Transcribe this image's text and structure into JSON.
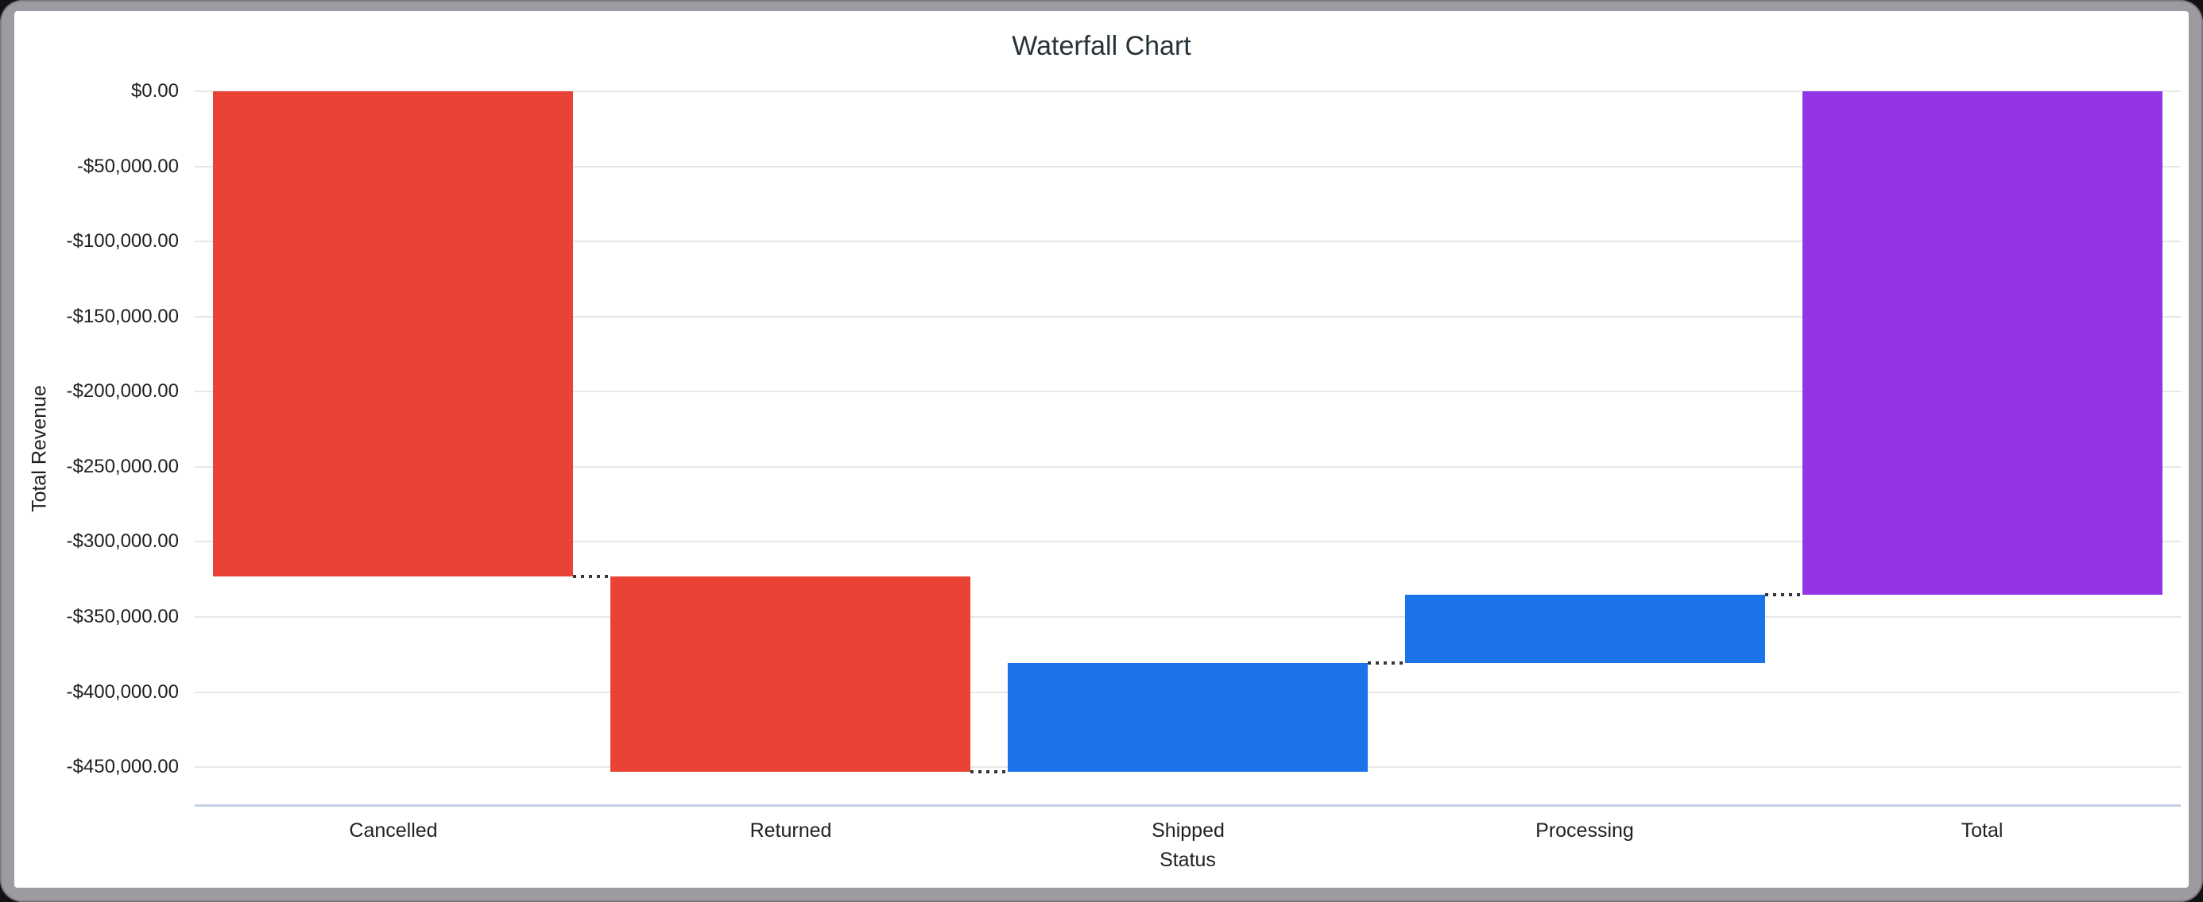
{
  "chart_data": {
    "type": "bar",
    "subtype": "waterfall",
    "title": "Waterfall Chart",
    "xlabel": "Status",
    "ylabel": "Total Revenue",
    "categories": [
      "Cancelled",
      "Returned",
      "Shipped",
      "Processing",
      "Total"
    ],
    "series": [
      {
        "name": "Cancelled",
        "role": "decrease",
        "change": -323000,
        "start": 0,
        "end": -323000,
        "color": "#EA4335"
      },
      {
        "name": "Returned",
        "role": "decrease",
        "change": -130000,
        "start": -323000,
        "end": -453000,
        "color": "#EA4335"
      },
      {
        "name": "Shipped",
        "role": "increase",
        "change": 72500,
        "start": -453000,
        "end": -380500,
        "color": "#1A73E8"
      },
      {
        "name": "Processing",
        "role": "increase",
        "change": 45500,
        "start": -380500,
        "end": -335000,
        "color": "#1A73E8"
      },
      {
        "name": "Total",
        "role": "total",
        "change": -335000,
        "start": 0,
        "end": -335000,
        "color": "#9334E6"
      }
    ],
    "y_ticks": [
      {
        "value": 0,
        "label": "$0.00"
      },
      {
        "value": -50000,
        "label": "-$50,000.00"
      },
      {
        "value": -100000,
        "label": "-$100,000.00"
      },
      {
        "value": -150000,
        "label": "-$150,000.00"
      },
      {
        "value": -200000,
        "label": "-$200,000.00"
      },
      {
        "value": -250000,
        "label": "-$250,000.00"
      },
      {
        "value": -300000,
        "label": "-$300,000.00"
      },
      {
        "value": -350000,
        "label": "-$350,000.00"
      },
      {
        "value": -400000,
        "label": "-$400,000.00"
      },
      {
        "value": -450000,
        "label": "-$450,000.00"
      }
    ],
    "ylim": [
      -475800,
      0
    ],
    "grid": true,
    "legend": "none",
    "connector_style": "dotted"
  },
  "colors": {
    "decrease": "#EA4335",
    "increase": "#1A73E8",
    "total": "#9334E6",
    "grid": "#E7E7E7",
    "baseline": "#C6CFE6",
    "connector": "#33373D",
    "text": "#202124",
    "title_text": "#263238",
    "frame": "#9B9BA1"
  }
}
